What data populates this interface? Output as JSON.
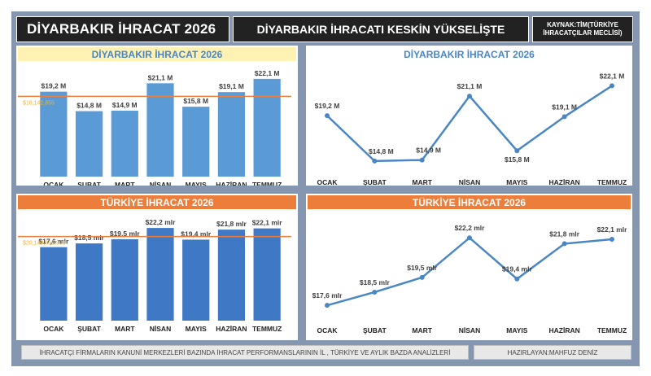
{
  "header": {
    "title": "DİYARBAKIR İHRACAT 2026",
    "subtitle": "DİYARBAKIR İHRACATI KESKİN YÜKSELİŞTE",
    "source": "KAYNAK:TİM(TÜRKİYE İHRACATÇILAR MECLİSİ)"
  },
  "footer": {
    "description": "İHRACATÇI FİRMALARIN KANUNİ MERKEZLERİ BAZINDA  İHRACAT PERFORMANSLARININ İL , TÜRKİYE VE AYLIK BAZDA ANALİZLERİ",
    "author": "HAZIRLAYAN:MAHFUZ DENİZ"
  },
  "colors": {
    "frame": "#8496b0",
    "bar_light": "#5b9bd5",
    "bar_dark": "#3f78c4",
    "line": "#4a86c5",
    "avg_line": "#ed7d3a",
    "avg_text": "#e6b43c"
  },
  "chart_data": [
    {
      "type": "bar",
      "title": "DİYARBAKIR İHRACAT 2026",
      "categories": [
        "OCAK",
        "ŞUBAT",
        "MART",
        "NİSAN",
        "MAYIS",
        "HAZİRAN",
        "TEMMUZ"
      ],
      "values": [
        19.2,
        14.8,
        14.9,
        21.1,
        15.8,
        19.1,
        22.1
      ],
      "data_labels": [
        "$19,2 M",
        "$14,8 M",
        "$14,9 M",
        "$21,1 M",
        "$15,8 M",
        "$19,1 M",
        "$22,1 M"
      ],
      "reference_line": {
        "value": 18.142855,
        "label": "$18,142,855"
      },
      "ylim": [
        0,
        23
      ]
    },
    {
      "type": "line",
      "title": "DİYARBAKIR İHRACAT 2026",
      "categories": [
        "OCAK",
        "ŞUBAT",
        "MART",
        "NİSAN",
        "MAYIS",
        "HAZİRAN",
        "TEMMUZ"
      ],
      "values": [
        19.2,
        14.8,
        14.9,
        21.1,
        15.8,
        19.1,
        22.1
      ],
      "data_labels": [
        "$19,2 M",
        "$14,8 M",
        "$14,9 M",
        "$21,1 M",
        "$15,8 M",
        "$19,1 M",
        "$22,1 M"
      ],
      "ylim": [
        14,
        23
      ]
    },
    {
      "type": "bar",
      "title": "TÜRKİYE İHRACAT 2026",
      "categories": [
        "OCAK",
        "ŞUBAT",
        "MART",
        "NİSAN",
        "MAYIS",
        "HAZİRAN",
        "TEMMUZ"
      ],
      "values": [
        17.6,
        18.5,
        19.5,
        22.2,
        19.4,
        21.8,
        22.1
      ],
      "data_labels": [
        "$17,6 mlr",
        "$18,5 mlr",
        "$19,5 mlr",
        "$22,2 mlr",
        "$19,4 mlr",
        "$21,8 mlr",
        "$22,1 mlr"
      ],
      "reference_line": {
        "value": 20.1486169,
        "label": "$20,148,616,900"
      },
      "ylim": [
        0,
        23
      ]
    },
    {
      "type": "line",
      "title": "TÜRKİYE İHRACAT 2026",
      "categories": [
        "OCAK",
        "ŞUBAT",
        "MART",
        "NİSAN",
        "MAYIS",
        "HAZİRAN",
        "TEMMUZ"
      ],
      "values": [
        17.6,
        18.5,
        19.5,
        22.2,
        19.4,
        21.8,
        22.1
      ],
      "data_labels": [
        "$17,6 mlr",
        "$18,5 mlr",
        "$19,5 mlr",
        "$22,2 mlr",
        "$19,4 mlr",
        "$21,8 mlr",
        "$22,1 mlr"
      ],
      "ylim": [
        17,
        22.6
      ]
    }
  ]
}
